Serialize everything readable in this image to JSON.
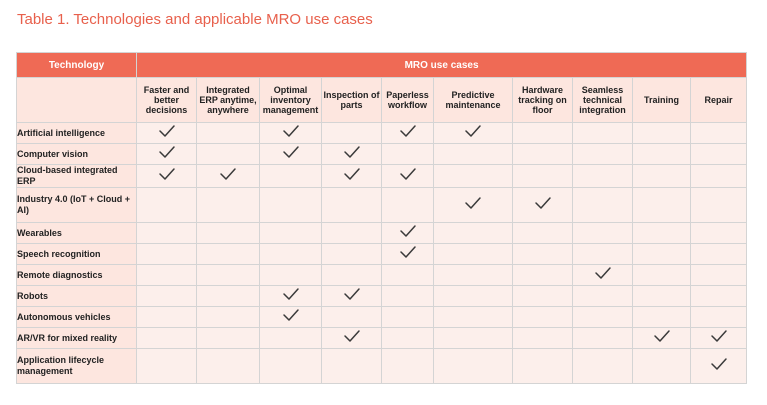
{
  "caption": "Table 1. Technologies and applicable MRO use cases",
  "header": {
    "technology_label": "Technology",
    "group_label": "MRO use cases"
  },
  "columns": [
    {
      "label": "Faster and better decisions"
    },
    {
      "label": "Integrated ERP anytime, anywhere"
    },
    {
      "label": "Optimal inventory management"
    },
    {
      "label": "Inspection of parts"
    },
    {
      "label": "Paperless workflow"
    },
    {
      "label": "Predictive maintenance"
    },
    {
      "label": "Hardware tracking on floor"
    },
    {
      "label": "Seamless technical integration"
    },
    {
      "label": "Training"
    },
    {
      "label": "Repair"
    }
  ],
  "rows": [
    {
      "technology": "Artificial intelligence",
      "checks": [
        true,
        false,
        true,
        false,
        true,
        true,
        false,
        false,
        false,
        false
      ]
    },
    {
      "technology": "Computer vision",
      "checks": [
        true,
        false,
        true,
        true,
        false,
        false,
        false,
        false,
        false,
        false
      ]
    },
    {
      "technology": "Cloud-based integrated ERP",
      "checks": [
        true,
        true,
        false,
        true,
        true,
        false,
        false,
        false,
        false,
        false
      ]
    },
    {
      "technology": "Industry 4.0 (IoT + Cloud + AI)",
      "checks": [
        false,
        false,
        false,
        false,
        false,
        true,
        true,
        false,
        false,
        false
      ]
    },
    {
      "technology": "Wearables",
      "checks": [
        false,
        false,
        false,
        false,
        true,
        false,
        false,
        false,
        false,
        false
      ]
    },
    {
      "technology": "Speech recognition",
      "checks": [
        false,
        false,
        false,
        false,
        true,
        false,
        false,
        false,
        false,
        false
      ]
    },
    {
      "technology": "Remote diagnostics",
      "checks": [
        false,
        false,
        false,
        false,
        false,
        false,
        false,
        true,
        false,
        false
      ]
    },
    {
      "technology": "Robots",
      "checks": [
        false,
        false,
        true,
        true,
        false,
        false,
        false,
        false,
        false,
        false
      ]
    },
    {
      "technology": "Autonomous vehicles",
      "checks": [
        false,
        false,
        true,
        false,
        false,
        false,
        false,
        false,
        false,
        false
      ]
    },
    {
      "technology": "AR/VR for mixed reality",
      "checks": [
        false,
        false,
        false,
        true,
        false,
        false,
        false,
        false,
        true,
        true
      ]
    },
    {
      "technology": "Application lifecycle management",
      "checks": [
        false,
        false,
        false,
        false,
        false,
        false,
        false,
        false,
        false,
        true
      ]
    }
  ],
  "colors": {
    "caption": "#e8604c",
    "header_band": "#ef6a55",
    "cell_fill": "#fcefeb",
    "label_fill": "#fde6df",
    "check": "#3a3a3a"
  }
}
